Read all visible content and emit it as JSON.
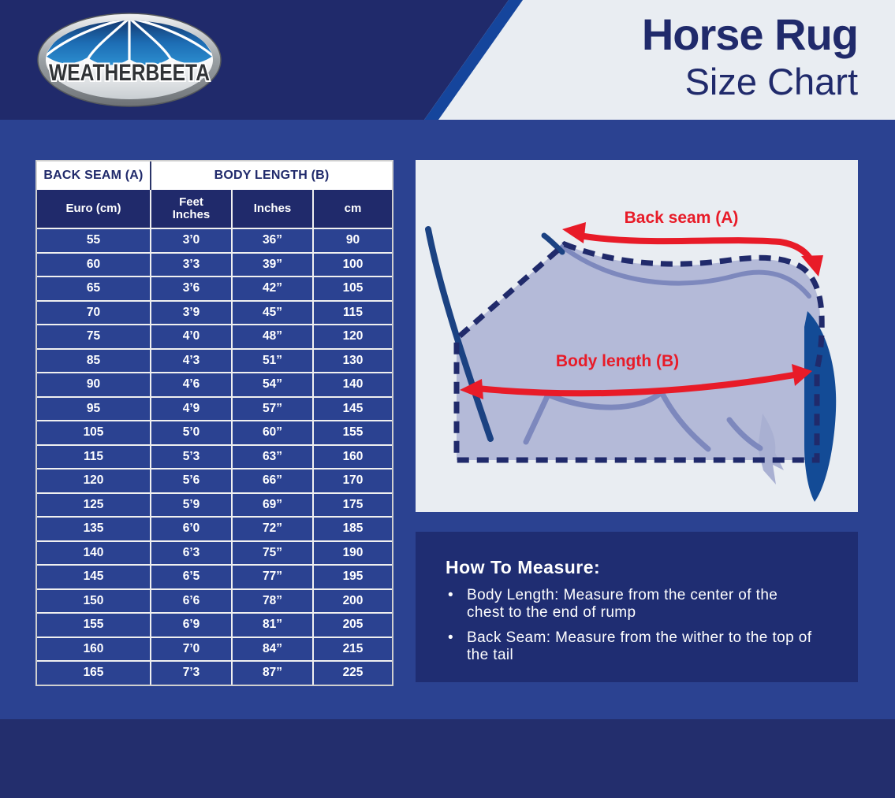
{
  "header": {
    "title_line1": "Horse Rug",
    "title_line2": "Size Chart"
  },
  "logo": {
    "brand": "WEATHERBEETA"
  },
  "table": {
    "group_headers": {
      "back_seam": "BACK SEAM (A)",
      "body_length": "BODY LENGTH (B)"
    },
    "columns": [
      "Euro (cm)",
      "Feet\nInches",
      "Inches",
      "cm"
    ],
    "rows": [
      [
        "55",
        "3’0",
        "36”",
        "90"
      ],
      [
        "60",
        "3’3",
        "39”",
        "100"
      ],
      [
        "65",
        "3’6",
        "42”",
        "105"
      ],
      [
        "70",
        "3’9",
        "45”",
        "115"
      ],
      [
        "75",
        "4’0",
        "48”",
        "120"
      ],
      [
        "85",
        "4’3",
        "51”",
        "130"
      ],
      [
        "90",
        "4’6",
        "54”",
        "140"
      ],
      [
        "95",
        "4’9",
        "57”",
        "145"
      ],
      [
        "105",
        "5’0",
        "60”",
        "155"
      ],
      [
        "115",
        "5’3",
        "63”",
        "160"
      ],
      [
        "120",
        "5’6",
        "66”",
        "170"
      ],
      [
        "125",
        "5’9",
        "69”",
        "175"
      ],
      [
        "135",
        "6’0",
        "72”",
        "185"
      ],
      [
        "140",
        "6’3",
        "75”",
        "190"
      ],
      [
        "145",
        "6’5",
        "77”",
        "195"
      ],
      [
        "150",
        "6’6",
        "78”",
        "200"
      ],
      [
        "155",
        "6’9",
        "81”",
        "205"
      ],
      [
        "160",
        "7’0",
        "84”",
        "215"
      ],
      [
        "165",
        "7’3",
        "87”",
        "225"
      ]
    ]
  },
  "diagram": {
    "back_seam_label": "Back seam (A)",
    "body_length_label": "Body length (B)"
  },
  "how_to_measure": {
    "heading": "How To Measure:",
    "bullets": [
      "Body Length: Measure from the center of the chest to the end of rump",
      "Back Seam: Measure from the wither to the top of the tail"
    ]
  },
  "colors": {
    "header_navy": "#202a6b",
    "page_blue": "#2b4291",
    "accent_stripe": "#15459c",
    "light_panel": "#e9edf2",
    "arrow_red": "#e81b28",
    "footer_band": "#232e6d",
    "howto_box": "#1f2d72"
  }
}
